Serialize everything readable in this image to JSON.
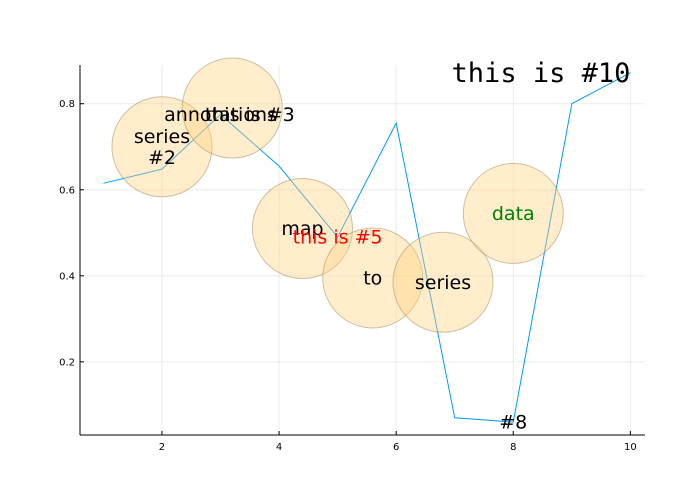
{
  "chart_data": {
    "type": "scatter",
    "title": "",
    "xlabel": "",
    "ylabel": "",
    "xlim": [
      0.6,
      10.25
    ],
    "ylim": [
      0.03,
      0.89
    ],
    "x_ticks": [
      2,
      4,
      6,
      8,
      10
    ],
    "y_ticks": [
      0.2,
      0.4,
      0.6,
      0.8
    ],
    "grid": true,
    "legend": "none",
    "series": [
      {
        "type": "line",
        "color": "#009AF9",
        "x": [
          1,
          2,
          3,
          4,
          5,
          6,
          7,
          8,
          9,
          10
        ],
        "y": [
          0.615,
          0.648,
          0.775,
          0.655,
          0.49,
          0.755,
          0.07,
          0.06,
          0.8,
          0.872
        ]
      },
      {
        "type": "scatter",
        "fill": "#FFD27F",
        "fill_opacity": 0.4,
        "stroke": "#A08A5A",
        "x": [
          2.0,
          3.2,
          4.4,
          5.6,
          6.8,
          8.0
        ],
        "y": [
          0.7,
          0.79,
          0.51,
          0.395,
          0.385,
          0.545
        ]
      }
    ],
    "annotations": [
      {
        "text": "series\n#2",
        "x": 2.0,
        "y": 0.7,
        "color": "#000000",
        "mono": false
      },
      {
        "text": "annotations",
        "x": 3.0,
        "y": 0.775,
        "color": "#000000",
        "mono": false
      },
      {
        "text": "this is #3",
        "x": 3.5,
        "y": 0.775,
        "color": "#000000",
        "mono": false
      },
      {
        "text": "map",
        "x": 4.4,
        "y": 0.51,
        "color": "#000000",
        "mono": false
      },
      {
        "text": "this is #5",
        "x": 5.0,
        "y": 0.49,
        "color": "#FF0000",
        "mono": false
      },
      {
        "text": "to",
        "x": 5.6,
        "y": 0.395,
        "color": "#000000",
        "mono": false
      },
      {
        "text": "series",
        "x": 6.8,
        "y": 0.385,
        "color": "#000000",
        "mono": false
      },
      {
        "text": "data",
        "x": 8.0,
        "y": 0.545,
        "color": "#008000",
        "mono": false
      },
      {
        "text": "#8",
        "x": 8.0,
        "y": 0.06,
        "color": "#000000",
        "mono": false
      },
      {
        "text": "this is #10",
        "x": 10.0,
        "y": 0.872,
        "color": "#000000",
        "mono": true,
        "align": "right"
      }
    ]
  }
}
